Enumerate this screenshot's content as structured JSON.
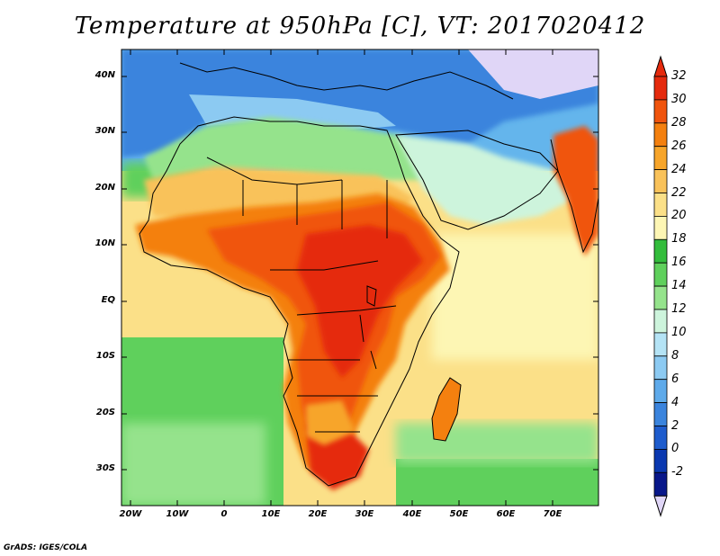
{
  "title": "Temperature at 950hPa [C], VT: 2017020412",
  "credit": "GrADS: IGES/COLA",
  "lat_labels": [
    "40N",
    "30N",
    "20N",
    "10N",
    "EQ",
    "10S",
    "20S",
    "30S"
  ],
  "lon_labels": [
    "20W",
    "10W",
    "0",
    "10E",
    "20E",
    "30E",
    "40E",
    "50E",
    "60E",
    "70E"
  ],
  "colorbar": {
    "labels": [
      "32",
      "30",
      "28",
      "26",
      "24",
      "22",
      "20",
      "18",
      "16",
      "14",
      "12",
      "10",
      "8",
      "6",
      "4",
      "2",
      "0",
      "-2"
    ],
    "colors": [
      "#e52a0d",
      "#f0540d",
      "#f4800f",
      "#f7a52a",
      "#f9c25a",
      "#fbe088",
      "#fdf6b4",
      "#33bd3c",
      "#5fd05c",
      "#95e38c",
      "#cdf4dc",
      "#b4e3f5",
      "#8ccaf2",
      "#5eaaea",
      "#3a84dd",
      "#1e5ccd",
      "#0a38b0",
      "#08178a"
    ],
    "over_color": "#e52a0d",
    "under_color": "#e0d6f7"
  },
  "map_colors": {
    "ocean_north": "#64b5ec",
    "med": "#3a84dd",
    "ocean_trop": "#fbe088",
    "ocean_south": "#5fd05c",
    "land_north": "#95e38c",
    "sahel": "#fbe088",
    "hot": "#f0540d",
    "hotter": "#e52a0d",
    "india": "#f4800f",
    "europe": "#3a84dd",
    "asia_cold": "#8ccaf2",
    "lavender": "#e0d6f7"
  }
}
